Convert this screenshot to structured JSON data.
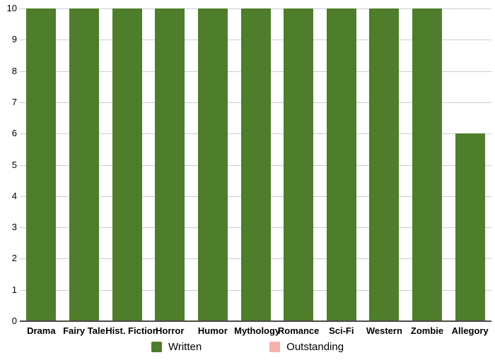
{
  "chart_data": {
    "type": "bar",
    "title": "",
    "xlabel": "",
    "ylabel": "",
    "categories": [
      "Drama",
      "Fairy Tale",
      "Hist. Fiction",
      "Horror",
      "Humor",
      "Mythology",
      "Romance",
      "Sci-Fi",
      "Western",
      "Zombie",
      "Allegory"
    ],
    "series": [
      {
        "name": "Written",
        "color": "#4e7e2b",
        "values": [
          10,
          10,
          10,
          10,
          10,
          10,
          10,
          10,
          10,
          10,
          6
        ]
      },
      {
        "name": "Outstanding",
        "color": "#f5b1ac",
        "values": [
          0,
          0,
          0,
          0,
          0,
          0,
          0,
          0,
          0,
          0,
          0
        ]
      }
    ],
    "ylim": [
      0,
      10
    ],
    "yticks": [
      0,
      1,
      2,
      3,
      4,
      5,
      6,
      7,
      8,
      9,
      10
    ],
    "grid": true,
    "legend_position": "bottom",
    "colors": {
      "gridline": "#cccccc",
      "axis_line": "#4a4a4a",
      "tick_label": "#000000",
      "background": "#ffffff"
    }
  }
}
